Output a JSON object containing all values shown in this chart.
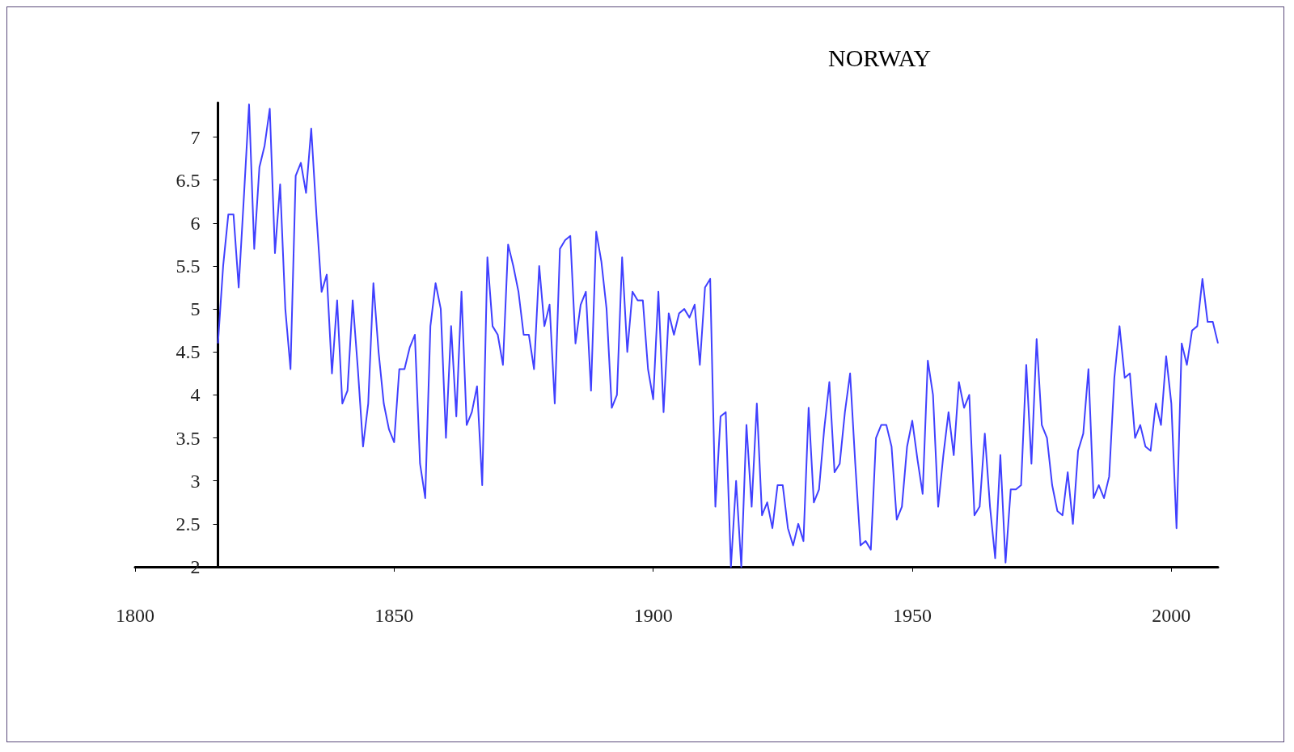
{
  "chart_data": {
    "type": "line",
    "title": "NORWAY",
    "x": [
      1816,
      1817,
      1818,
      1819,
      1820,
      1821,
      1822,
      1823,
      1824,
      1825,
      1826,
      1827,
      1828,
      1829,
      1830,
      1831,
      1832,
      1833,
      1834,
      1835,
      1836,
      1837,
      1838,
      1839,
      1840,
      1841,
      1842,
      1843,
      1844,
      1845,
      1846,
      1847,
      1848,
      1849,
      1850,
      1851,
      1852,
      1853,
      1854,
      1855,
      1856,
      1857,
      1858,
      1859,
      1860,
      1861,
      1862,
      1863,
      1864,
      1865,
      1866,
      1867,
      1868,
      1869,
      1870,
      1871,
      1872,
      1873,
      1874,
      1875,
      1876,
      1877,
      1878,
      1879,
      1880,
      1881,
      1882,
      1883,
      1884,
      1885,
      1886,
      1887,
      1888,
      1889,
      1890,
      1891,
      1892,
      1893,
      1894,
      1895,
      1896,
      1897,
      1898,
      1899,
      1900,
      1901,
      1902,
      1903,
      1904,
      1905,
      1906,
      1907,
      1908,
      1909,
      1910,
      1911,
      1912,
      1913,
      1914,
      1915,
      1916,
      1917,
      1918,
      1919,
      1920,
      1921,
      1922,
      1923,
      1924,
      1925,
      1926,
      1927,
      1928,
      1929,
      1930,
      1931,
      1932,
      1933,
      1934,
      1935,
      1936,
      1937,
      1938,
      1939,
      1940,
      1941,
      1942,
      1943,
      1944,
      1945,
      1946,
      1947,
      1948,
      1949,
      1950,
      1951,
      1952,
      1953,
      1954,
      1955,
      1956,
      1957,
      1958,
      1959,
      1960,
      1961,
      1962,
      1963,
      1964,
      1965,
      1966,
      1967,
      1968,
      1969,
      1970,
      1971,
      1972,
      1973,
      1974,
      1975,
      1976,
      1977,
      1978,
      1979,
      1980,
      1981,
      1982,
      1983,
      1984,
      1985,
      1986,
      1987,
      1988,
      1989,
      1990,
      1991,
      1992,
      1993,
      1994,
      1995,
      1996,
      1997,
      1998,
      1999,
      2000,
      2001,
      2002,
      2003,
      2004,
      2005,
      2006,
      2007,
      2008,
      2009
    ],
    "series": [
      {
        "color": "#4040ff",
        "values": [
          4.6,
          5.5,
          6.1,
          6.1,
          5.25,
          6.3,
          7.38,
          5.7,
          6.65,
          6.9,
          7.33,
          5.65,
          6.45,
          5.0,
          4.3,
          6.55,
          6.7,
          6.35,
          7.1,
          6.1,
          5.2,
          5.4,
          4.25,
          5.1,
          3.9,
          4.05,
          5.1,
          4.3,
          3.4,
          3.9,
          5.3,
          4.5,
          3.9,
          3.6,
          3.45,
          4.3,
          4.3,
          4.55,
          4.7,
          3.2,
          2.8,
          4.8,
          5.3,
          5.0,
          3.5,
          4.8,
          3.75,
          5.2,
          3.65,
          3.8,
          4.1,
          2.95,
          5.6,
          4.8,
          4.7,
          4.35,
          5.75,
          5.5,
          5.2,
          4.7,
          4.7,
          4.3,
          5.5,
          4.8,
          5.05,
          3.9,
          5.7,
          5.8,
          5.85,
          4.6,
          5.05,
          5.2,
          4.05,
          5.9,
          5.55,
          5.0,
          3.85,
          4.0,
          5.6,
          4.5,
          5.2,
          5.1,
          5.1,
          4.3,
          3.95,
          5.2,
          3.8,
          4.95,
          4.7,
          4.95,
          5.0,
          4.9,
          5.05,
          4.35,
          5.25,
          5.35,
          2.7,
          3.75,
          3.8,
          2.0,
          3.0,
          2.0,
          3.65,
          2.7,
          3.9,
          2.6,
          2.75,
          2.45,
          2.95,
          2.95,
          2.45,
          2.25,
          2.5,
          2.3,
          3.85,
          2.75,
          2.9,
          3.6,
          4.15,
          3.1,
          3.2,
          3.8,
          4.25,
          3.2,
          2.25,
          2.3,
          2.2,
          3.5,
          3.65,
          3.65,
          3.4,
          2.55,
          2.7,
          3.4,
          3.7,
          3.25,
          2.85,
          4.4,
          4.0,
          2.7,
          3.3,
          3.8,
          3.3,
          4.15,
          3.85,
          4.0,
          2.6,
          2.7,
          3.55,
          2.7,
          2.1,
          3.3,
          2.05,
          2.9,
          2.9,
          2.95,
          4.35,
          3.2,
          4.65,
          3.65,
          3.5,
          2.95,
          2.65,
          2.6,
          3.1,
          2.5,
          3.35,
          3.55,
          4.3,
          2.8,
          2.95,
          2.8,
          3.05,
          4.2,
          4.8,
          4.2,
          4.25,
          3.5,
          3.65,
          3.4,
          3.35,
          3.9,
          3.65,
          4.45,
          3.9,
          2.45,
          4.6,
          4.35,
          4.75,
          4.8,
          5.35,
          4.85,
          4.85,
          4.6
        ]
      }
    ],
    "xlim": [
      1800,
      2009
    ],
    "xticks": [
      1800,
      1850,
      1900,
      1950,
      2000
    ],
    "ylim": [
      2,
      7.4
    ],
    "yticks": [
      2,
      2.5,
      3,
      3.5,
      4,
      4.5,
      5,
      5.5,
      6,
      6.5,
      7
    ],
    "grid": false,
    "line_style": "solid"
  }
}
